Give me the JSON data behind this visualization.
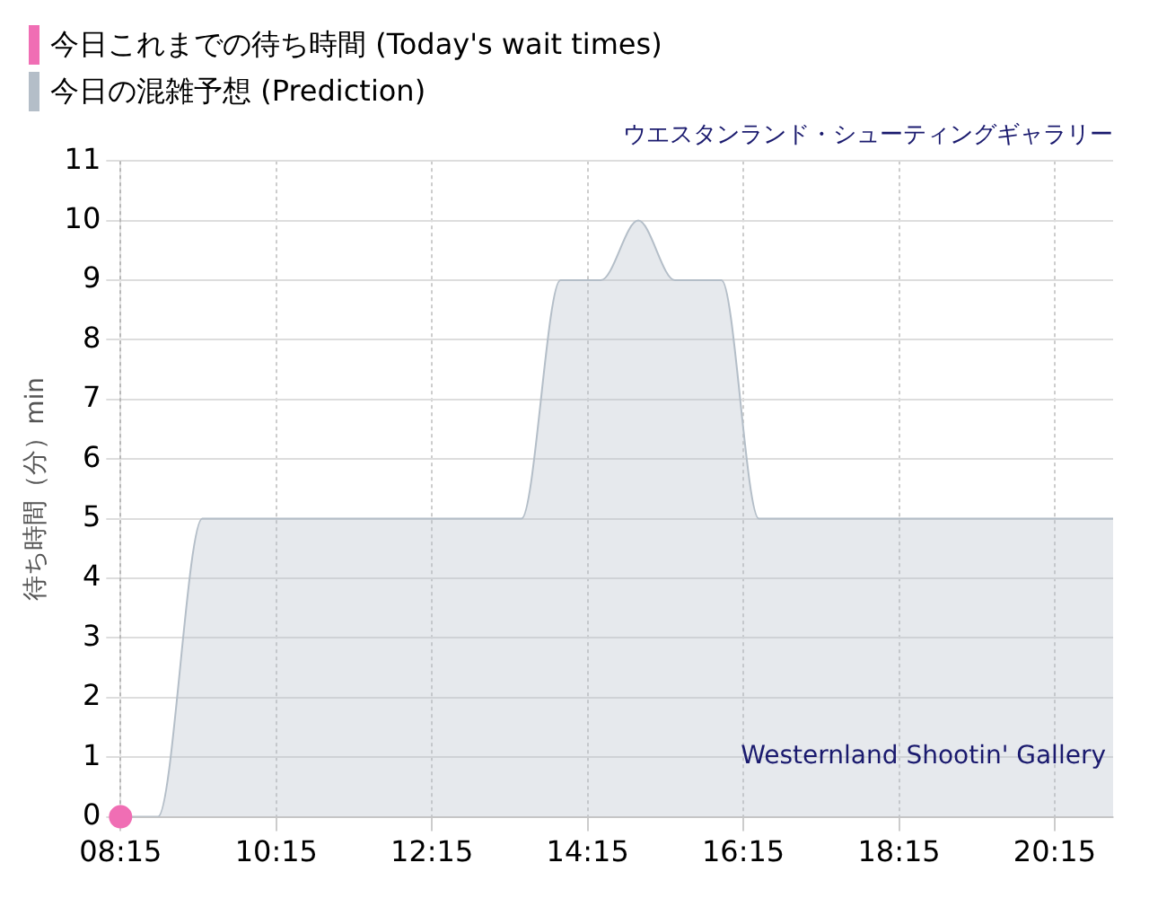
{
  "chart_data": {
    "type": "area",
    "title": "ウエスタンランド・シューティングギャラリー",
    "ylabel": "待ち時間（分）min",
    "annotations": [
      "Westernland Shootin' Gallery"
    ],
    "series": [
      {
        "name": "今日これまでの待ち時間 (Today's wait times)",
        "type": "scatter",
        "marker": "circle",
        "color": "#f06eb4",
        "x": [
          8.25
        ],
        "values": [
          0
        ]
      },
      {
        "name": "今日の混雑予想 (Prediction)",
        "color": "#b4bec8",
        "x": [
          8.25,
          8.73,
          9.3,
          13.4,
          13.9,
          14.42,
          14.9,
          15.37,
          15.97,
          16.45,
          21
        ],
        "values": [
          0,
          0,
          5,
          5,
          9,
          9,
          10,
          9,
          9,
          5,
          5
        ]
      }
    ],
    "xlim": [
      8.25,
      21
    ],
    "xticks": [
      {
        "value": 8.25,
        "label": "08:15"
      },
      {
        "value": 10.25,
        "label": "10:15"
      },
      {
        "value": 12.25,
        "label": "12:15"
      },
      {
        "value": 14.25,
        "label": "14:15"
      },
      {
        "value": 16.25,
        "label": "16:15"
      },
      {
        "value": 18.25,
        "label": "18:15"
      },
      {
        "value": 20.25,
        "label": "20:15"
      }
    ],
    "ylim": [
      0,
      11
    ],
    "yticks": [
      0,
      1,
      2,
      3,
      4,
      5,
      6,
      7,
      8,
      9,
      10,
      11
    ],
    "grid": true,
    "legend": "top left",
    "line_style": "solid"
  }
}
